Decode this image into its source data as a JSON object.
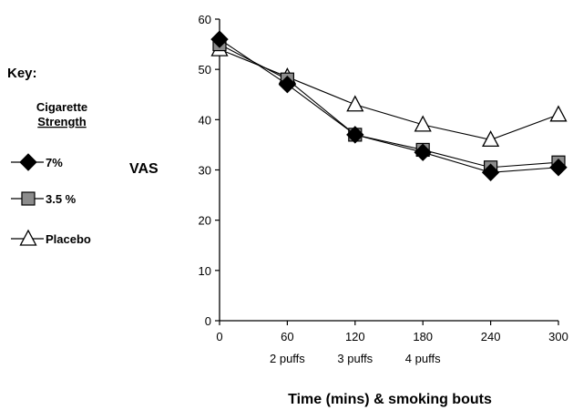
{
  "chart_data": {
    "type": "line",
    "title": "",
    "xlabel": "Time (mins) & smoking bouts",
    "ylabel": "VAS",
    "x": [
      0,
      60,
      120,
      180,
      240,
      300
    ],
    "x_tick_labels": [
      "0",
      "60",
      "120",
      "180",
      "240",
      "300"
    ],
    "bout_labels": [
      {
        "x": 60,
        "label": "2 puffs"
      },
      {
        "x": 120,
        "label": "3 puffs"
      },
      {
        "x": 180,
        "label": "4 puffs"
      }
    ],
    "xlim": [
      0,
      300
    ],
    "ylim": [
      0,
      60
    ],
    "y_ticks": [
      0,
      10,
      20,
      30,
      40,
      50,
      60
    ],
    "grid": false,
    "legend_position": "left",
    "legend_title": "Key:",
    "legend_subtitle": [
      "Cigarette",
      "Strength"
    ],
    "series": [
      {
        "name": "7%",
        "marker": "diamond",
        "fill": "#000000",
        "values": [
          56,
          47,
          37,
          33.5,
          29.5,
          30.5
        ]
      },
      {
        "name": "3.5 %",
        "marker": "square",
        "fill": "#8c8c8c",
        "values": [
          55,
          48,
          37,
          34,
          30.5,
          31.5
        ]
      },
      {
        "name": "Placebo",
        "marker": "triangle",
        "fill": "#ffffff",
        "values": [
          54,
          48.5,
          43,
          39,
          36,
          41
        ]
      }
    ]
  }
}
